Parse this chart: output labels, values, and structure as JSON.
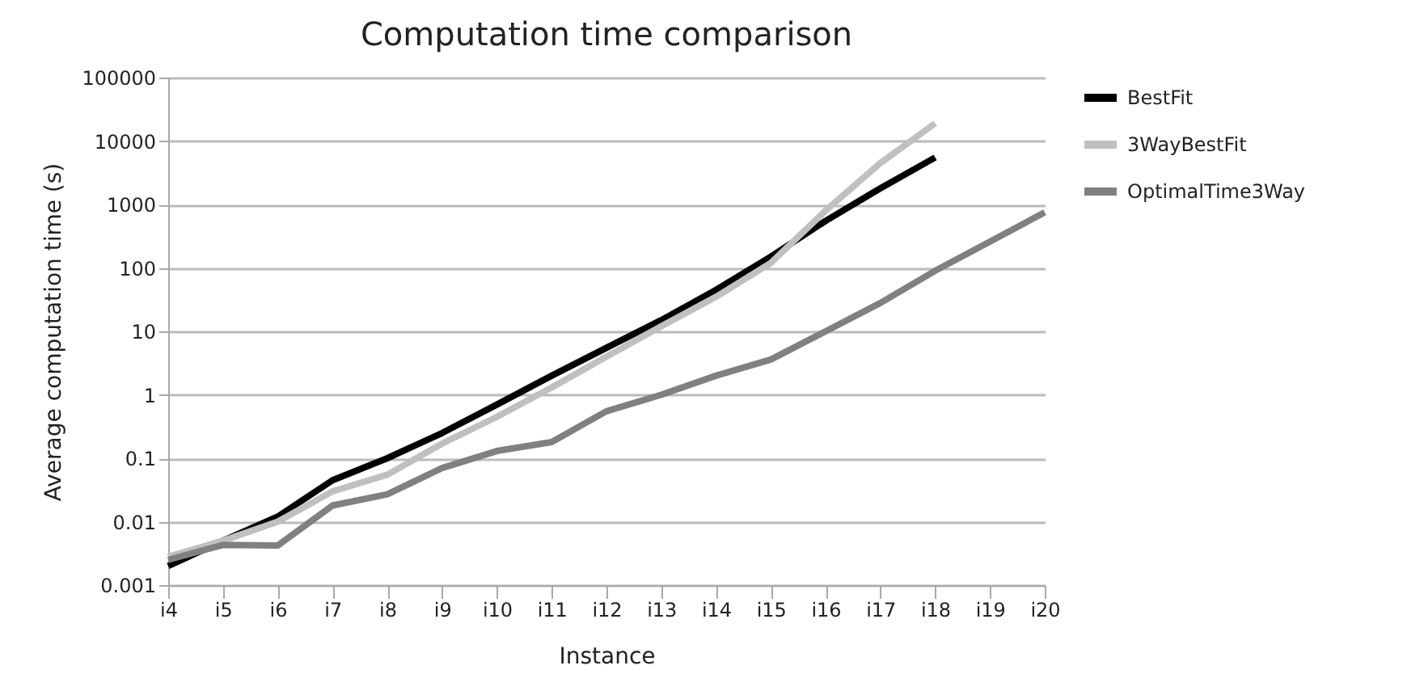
{
  "chart_data": {
    "type": "line",
    "title": "Computation time comparison",
    "xlabel": "Instance",
    "ylabel": "Average computation time (s)",
    "categories": [
      "i4",
      "i5",
      "i6",
      "i7",
      "i8",
      "i9",
      "i10",
      "i11",
      "i12",
      "i13",
      "i14",
      "i15",
      "i16",
      "i17",
      "i18",
      "i19",
      "i20"
    ],
    "series": [
      {
        "name": "BestFit",
        "color": "#000000",
        "values": [
          0.002,
          0.005,
          0.012,
          0.045,
          0.1,
          0.25,
          0.7,
          2,
          5.5,
          15,
          45,
          150,
          550,
          1800,
          5500,
          null,
          null
        ]
      },
      {
        "name": "3WayBestFit",
        "color": "#c0c0c0",
        "values": [
          0.0028,
          0.005,
          0.01,
          0.03,
          0.055,
          0.17,
          0.45,
          1.3,
          4,
          12,
          35,
          120,
          800,
          4500,
          19000,
          null,
          null
        ]
      },
      {
        "name": "OptimalTime3Way",
        "color": "#808080",
        "values": [
          0.0025,
          0.0043,
          0.0042,
          0.018,
          0.027,
          0.07,
          0.13,
          0.18,
          0.55,
          1,
          2,
          3.6,
          10,
          28,
          90,
          260,
          750
        ]
      }
    ],
    "log": true,
    "ylim": [
      0.001,
      100000
    ],
    "yticks": [
      0.001,
      0.01,
      0.1,
      1,
      10,
      100,
      1000,
      10000,
      100000
    ],
    "grid": "y",
    "legend": "right",
    "line_style": "solid",
    "marker": "none"
  }
}
